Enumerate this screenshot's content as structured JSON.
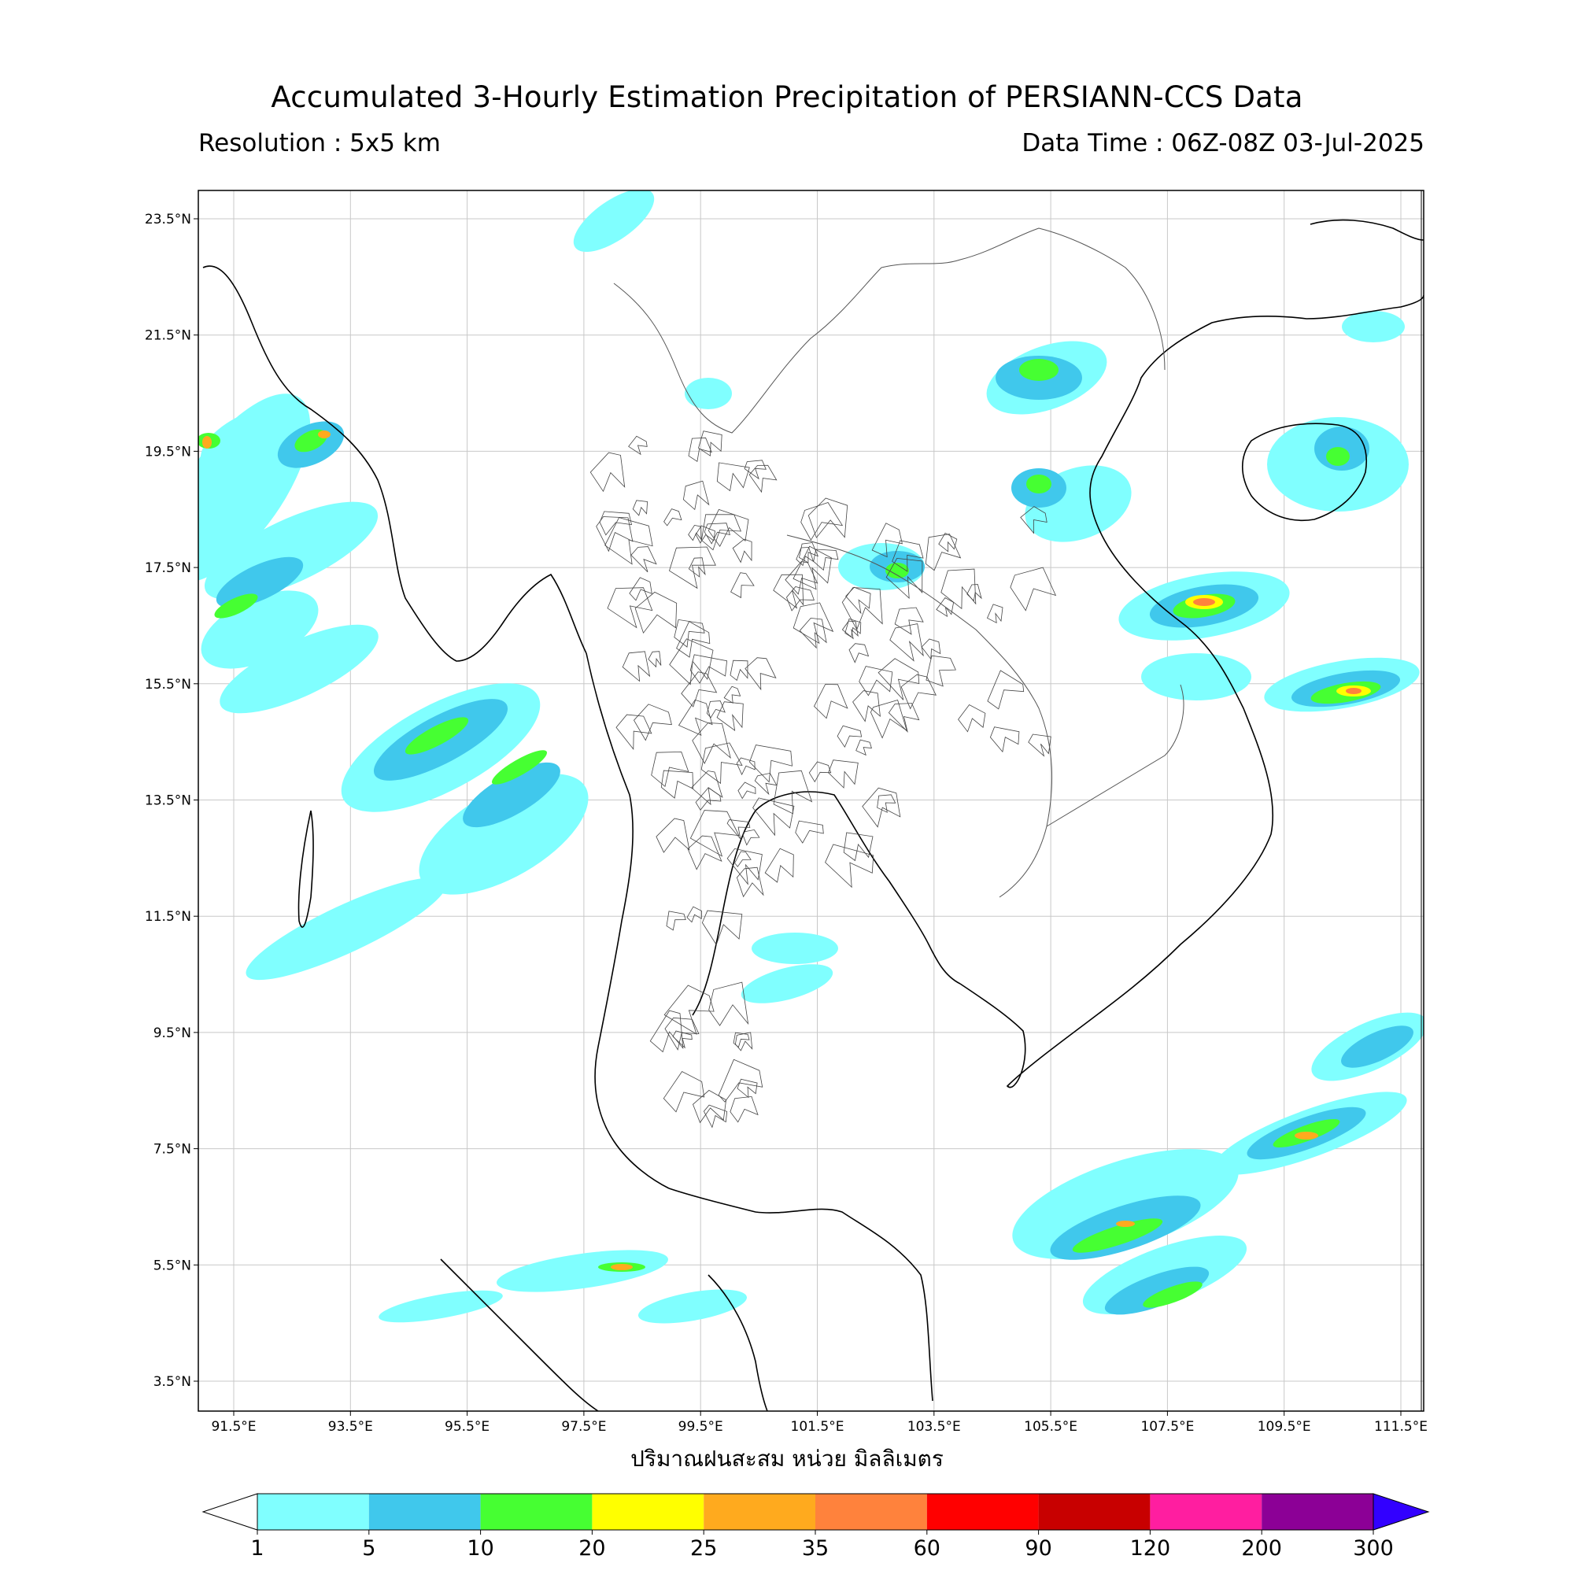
{
  "title": "Accumulated 3-Hourly Estimation Precipitation of PERSIANN-CCS Data",
  "resolution_label": "Resolution : 5x5 km",
  "data_time_label": "Data Time : 06Z-08Z 03-Jul-2025",
  "x_axis_title": "ปริมาณฝนสะสม หน่วย มิลลิเมตร",
  "lat_ticks": [
    "23.5°N",
    "21.5°N",
    "19.5°N",
    "17.5°N",
    "15.5°N",
    "13.5°N",
    "11.5°N",
    "9.5°N",
    "7.5°N",
    "5.5°N",
    "3.5°N"
  ],
  "lon_ticks": [
    "91.5°E",
    "93.5°E",
    "95.5°E",
    "97.5°E",
    "99.5°E",
    "101.5°E",
    "103.5°E",
    "105.5°E",
    "107.5°E",
    "109.5°E",
    "111.5°E"
  ],
  "colorbar": {
    "labels": [
      "1",
      "5",
      "10",
      "20",
      "25",
      "35",
      "60",
      "90",
      "120",
      "200",
      "300"
    ],
    "colors": [
      "#80ffff",
      "#40c8ec",
      "#46ff32",
      "#ffff00",
      "#ffaa1e",
      "#ff823c",
      "#ff0000",
      "#c80000",
      "#ff1ea0",
      "#8c0096",
      "#3200ff"
    ]
  }
}
